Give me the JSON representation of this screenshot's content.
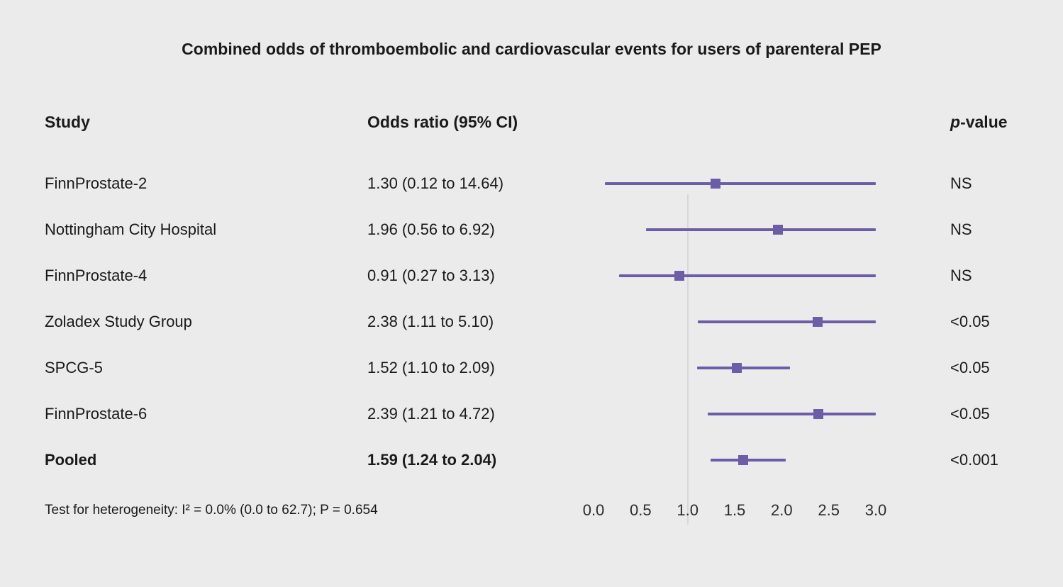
{
  "title": "Combined odds of thromboembolic and cardiovascular events for users of parenteral PEP",
  "columns": {
    "study": "Study",
    "odds_ratio": "Odds ratio (95% CI)",
    "p_italic": "p",
    "p_rest": "-value"
  },
  "footer_note": "Test for heterogeneity: I² = 0.0% (0.0 to 62.7); P = 0.654",
  "colors": {
    "accent_purple": "#6c5ea6",
    "background": "#ebebeb",
    "reference_line": "#d8d8d8",
    "text": "#1a1a1a"
  },
  "chart_data": {
    "type": "forest",
    "title": "Combined odds of thromboembolic and cardiovascular events for users of parenteral PEP",
    "xlabel": "",
    "legend": "none",
    "axis": {
      "min": 0.0,
      "max": 3.0,
      "tick_values": [
        0.0,
        0.5,
        1.0,
        1.5,
        2.0,
        2.5,
        3.0
      ],
      "tick_labels": [
        "0.0",
        "0.5",
        "1.0",
        "1.5",
        "2.0",
        "2.5",
        "3.0"
      ],
      "reference_line": 1.0
    },
    "rows": [
      {
        "study": "FinnProstate-2",
        "or_label": "1.30 (0.12 to 14.64)",
        "or": 1.3,
        "ci_low": 0.12,
        "ci_high": 14.64,
        "p_value": "NS",
        "pooled": false
      },
      {
        "study": "Nottingham City Hospital",
        "or_label": "1.96 (0.56 to 6.92)",
        "or": 1.96,
        "ci_low": 0.56,
        "ci_high": 6.92,
        "p_value": "NS",
        "pooled": false
      },
      {
        "study": "FinnProstate-4",
        "or_label": "0.91 (0.27 to 3.13)",
        "or": 0.91,
        "ci_low": 0.27,
        "ci_high": 3.13,
        "p_value": "NS",
        "pooled": false
      },
      {
        "study": "Zoladex Study Group",
        "or_label": "2.38 (1.11 to 5.10)",
        "or": 2.38,
        "ci_low": 1.11,
        "ci_high": 5.1,
        "p_value": "<0.05",
        "pooled": false
      },
      {
        "study": "SPCG-5",
        "or_label": "1.52 (1.10 to 2.09)",
        "or": 1.52,
        "ci_low": 1.1,
        "ci_high": 2.09,
        "p_value": "<0.05",
        "pooled": false
      },
      {
        "study": "FinnProstate-6",
        "or_label": "2.39 (1.21 to 4.72)",
        "or": 2.39,
        "ci_low": 1.21,
        "ci_high": 4.72,
        "p_value": "<0.05",
        "pooled": false
      },
      {
        "study": "Pooled",
        "or_label": "1.59 (1.24 to 2.04)",
        "or": 1.59,
        "ci_low": 1.24,
        "ci_high": 2.04,
        "p_value": "<0.001",
        "pooled": true
      }
    ]
  }
}
